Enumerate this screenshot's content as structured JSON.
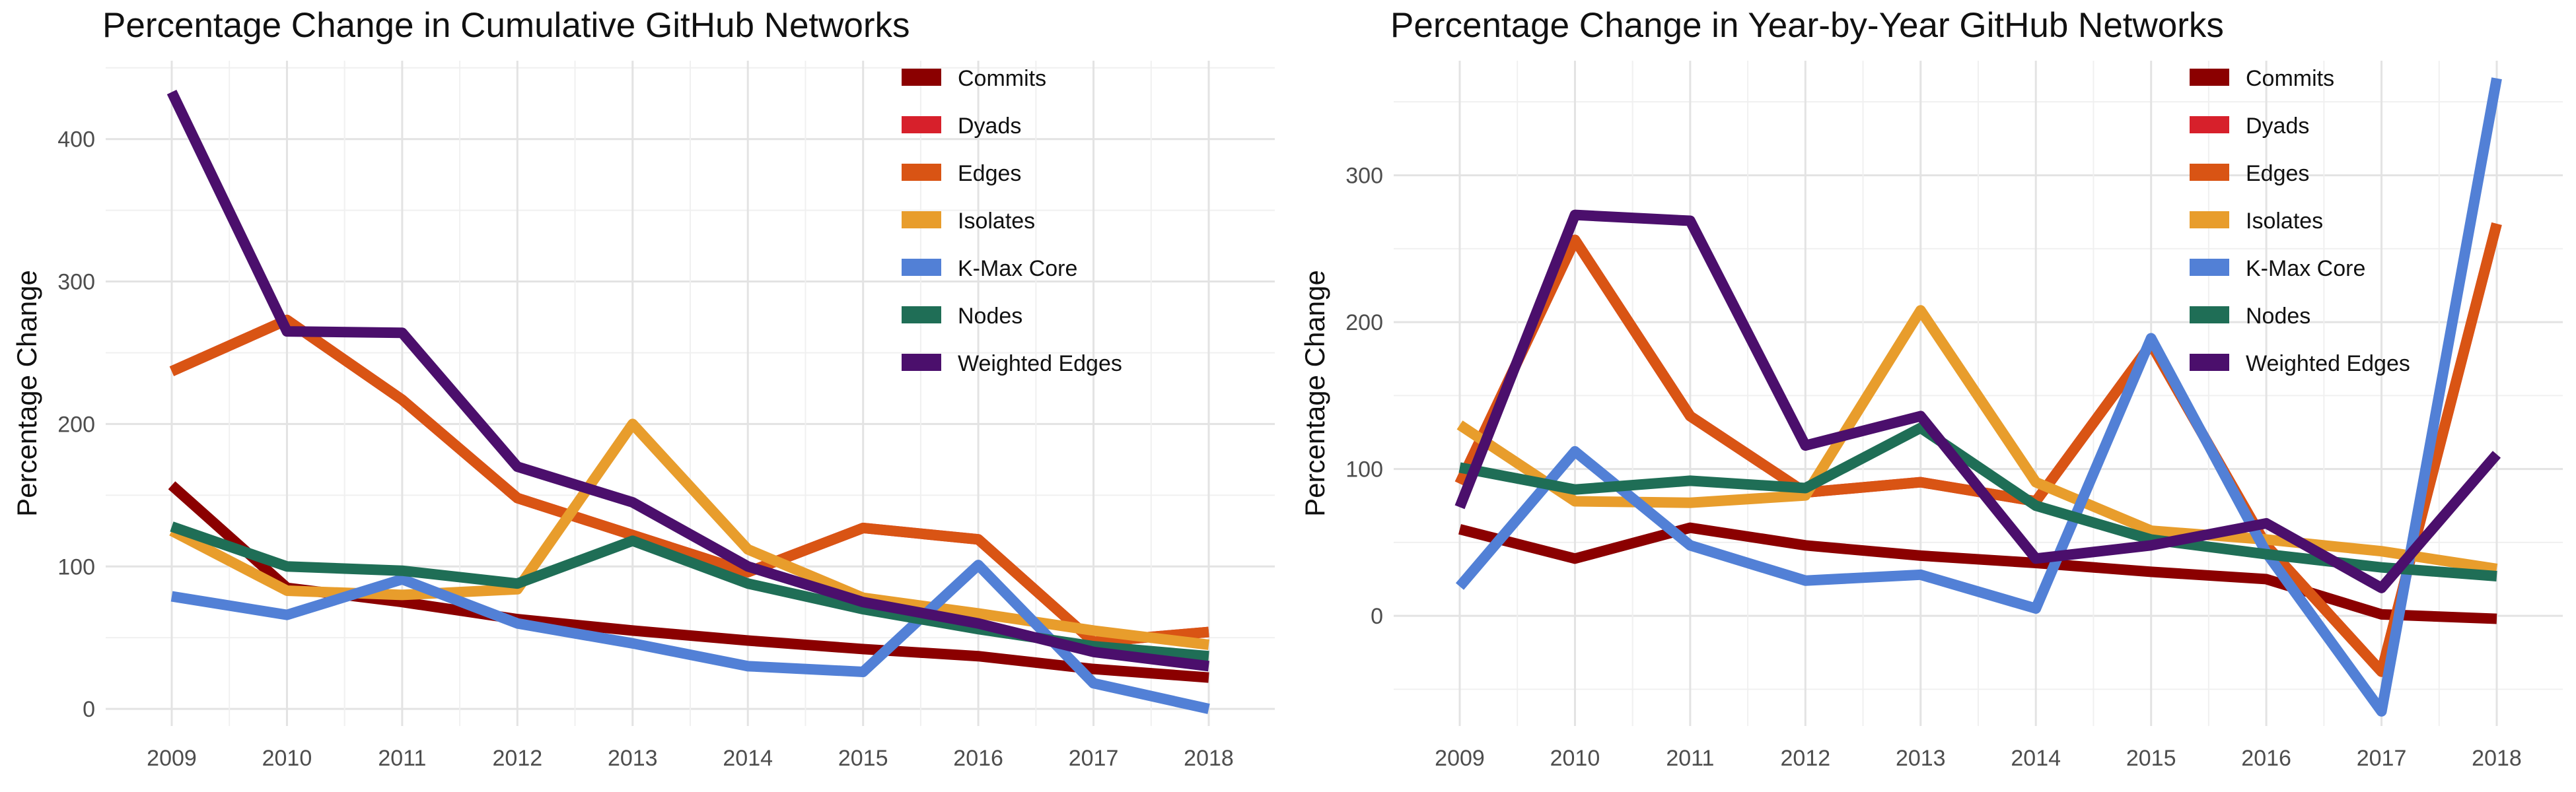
{
  "chart_data": [
    {
      "type": "line",
      "title": "Percentage Change in Cumulative GitHub Networks",
      "ylabel": "Percentage Change",
      "xlabel": "",
      "x": [
        2009,
        2010,
        2011,
        2012,
        2013,
        2014,
        2015,
        2016,
        2017,
        2018
      ],
      "ylim": [
        -12,
        455
      ],
      "yticks": [
        0,
        100,
        200,
        300,
        400
      ],
      "grid": true,
      "legend": "top-right",
      "series": [
        {
          "name": "Commits",
          "color": "#8b0000",
          "values": [
            157,
            85,
            75,
            63,
            55,
            48,
            42,
            37,
            28,
            22
          ]
        },
        {
          "name": "Dyads",
          "color": "#d7202b",
          "values": [
            237,
            273,
            217,
            148,
            122,
            96,
            127,
            119,
            47,
            54
          ]
        },
        {
          "name": "Edges",
          "color": "#d95414",
          "values": [
            237,
            273,
            217,
            148,
            122,
            96,
            127,
            119,
            47,
            54
          ]
        },
        {
          "name": "Isolates",
          "color": "#e89d2c",
          "values": [
            125,
            83,
            80,
            84,
            200,
            112,
            78,
            67,
            55,
            45
          ]
        },
        {
          "name": "K-Max Core",
          "color": "#5280d6",
          "values": [
            79,
            66,
            91,
            60,
            46,
            30,
            26,
            101,
            18,
            0
          ]
        },
        {
          "name": "Nodes",
          "color": "#1f6e56",
          "values": [
            128,
            100,
            97,
            88,
            118,
            88,
            70,
            56,
            44,
            37
          ]
        },
        {
          "name": "Weighted Edges",
          "color": "#4b0f6c",
          "values": [
            433,
            265,
            264,
            170,
            145,
            100,
            75,
            60,
            40,
            30
          ]
        }
      ]
    },
    {
      "type": "line",
      "title": "Percentage Change in Year-by-Year GitHub Networks",
      "ylabel": "Percentage Change",
      "xlabel": "",
      "x": [
        2009,
        2010,
        2011,
        2012,
        2013,
        2014,
        2015,
        2016,
        2017,
        2018
      ],
      "ylim": [
        -75,
        378
      ],
      "yticks": [
        0,
        100,
        200,
        300
      ],
      "grid": true,
      "legend": "top-right",
      "series": [
        {
          "name": "Commits",
          "color": "#8b0000",
          "values": [
            59,
            39,
            60,
            48,
            41,
            36,
            30,
            25,
            1,
            -2
          ]
        },
        {
          "name": "Dyads",
          "color": "#d7202b",
          "values": [
            90,
            256,
            136,
            84,
            91,
            78,
            185,
            48,
            -38,
            267
          ]
        },
        {
          "name": "Edges",
          "color": "#d95414",
          "values": [
            90,
            256,
            136,
            84,
            91,
            78,
            185,
            48,
            -38,
            267
          ]
        },
        {
          "name": "Isolates",
          "color": "#e89d2c",
          "values": [
            130,
            78,
            77,
            82,
            208,
            91,
            58,
            52,
            44,
            32
          ]
        },
        {
          "name": "K-Max Core",
          "color": "#5280d6",
          "values": [
            20,
            112,
            48,
            24,
            28,
            5,
            189,
            43,
            -65,
            366
          ]
        },
        {
          "name": "Nodes",
          "color": "#1f6e56",
          "values": [
            101,
            86,
            92,
            87,
            128,
            75,
            52,
            42,
            33,
            27
          ]
        },
        {
          "name": "Weighted Edges",
          "color": "#4b0f6c",
          "values": [
            74,
            273,
            269,
            116,
            136,
            39,
            48,
            63,
            19,
            110
          ]
        }
      ]
    }
  ]
}
